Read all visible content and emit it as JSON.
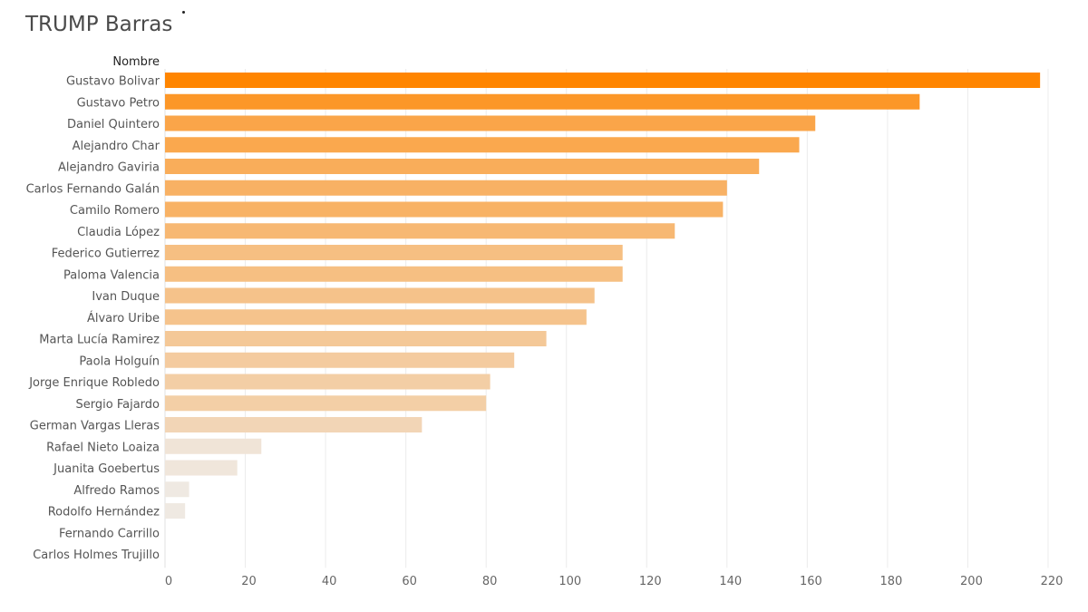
{
  "chart_data": {
    "type": "bar",
    "orientation": "horizontal",
    "title": "TRUMP Barras",
    "ylabel": "Nombre",
    "xlabel": "",
    "xlim": [
      0,
      220
    ],
    "xticks": [
      0,
      20,
      40,
      60,
      80,
      100,
      120,
      140,
      160,
      180,
      200,
      220
    ],
    "grid": "vertical",
    "categories": [
      "Gustavo Bolivar",
      "Gustavo Petro",
      "Daniel Quintero",
      "Alejandro Char",
      "Alejandro Gaviria",
      "Carlos Fernando Galán",
      "Camilo Romero",
      "Claudia López",
      "Federico Gutierrez",
      "Paloma Valencia",
      "Ivan Duque",
      "Álvaro Uribe",
      "Marta Lucía Ramirez",
      "Paola Holguín",
      "Jorge Enrique Robledo",
      "Sergio Fajardo",
      "German Vargas Lleras",
      "Rafael Nieto Loaiza",
      "Juanita Goebertus",
      "Alfredo Ramos",
      "Rodolfo Hernández",
      "Fernando Carrillo",
      "Carlos Holmes Trujillo"
    ],
    "values": [
      218,
      188,
      162,
      158,
      148,
      140,
      139,
      127,
      114,
      114,
      107,
      105,
      95,
      87,
      81,
      80,
      64,
      24,
      18,
      6,
      5,
      0,
      0
    ],
    "color_scale": [
      "#efeae4",
      "#ff8500"
    ]
  }
}
